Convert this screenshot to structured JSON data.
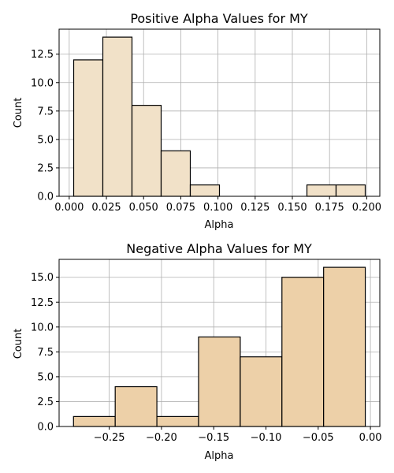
{
  "chart_data": [
    {
      "type": "bar",
      "subtype": "histogram",
      "title": "Positive Alpha Values for MY",
      "xlabel": "Alpha",
      "ylabel": "Count",
      "bin_edges": [
        0.003,
        0.0226,
        0.0422,
        0.0618,
        0.0814,
        0.101,
        0.1206,
        0.1402,
        0.1598,
        0.1794,
        0.199
      ],
      "values": [
        12,
        14,
        8,
        4,
        1,
        0,
        0,
        0,
        1,
        1
      ],
      "xlim": [
        -0.0068,
        0.2088
      ],
      "ylim": [
        0,
        14.7
      ],
      "xticks": [
        0.0,
        0.025,
        0.05,
        0.075,
        0.1,
        0.125,
        0.15,
        0.175,
        0.2
      ],
      "xtick_labels": [
        "0.000",
        "0.025",
        "0.050",
        "0.075",
        "0.100",
        "0.125",
        "0.150",
        "0.175",
        "0.200"
      ],
      "yticks": [
        0.0,
        2.5,
        5.0,
        7.5,
        10.0,
        12.5
      ],
      "ytick_labels": [
        "0.0",
        "2.5",
        "5.0",
        "7.5",
        "10.0",
        "12.5"
      ],
      "grid": true,
      "bar_color": "#f1e1c8",
      "edge_color": "#000000"
    },
    {
      "type": "bar",
      "subtype": "histogram",
      "title": "Negative Alpha Values for MY",
      "xlabel": "Alpha",
      "ylabel": "Count",
      "bin_edges": [
        -0.2842,
        -0.2443,
        -0.2044,
        -0.1645,
        -0.1246,
        -0.0847,
        -0.0448,
        -0.0049
      ],
      "values": [
        1,
        4,
        1,
        9,
        7,
        15,
        16
      ],
      "xlim": [
        -0.298,
        0.009
      ],
      "ylim": [
        0,
        16.8
      ],
      "xticks": [
        -0.25,
        -0.2,
        -0.15,
        -0.1,
        -0.05,
        0.0
      ],
      "xtick_labels": [
        "−0.25",
        "−0.20",
        "−0.15",
        "−0.10",
        "−0.05",
        "0.00"
      ],
      "yticks": [
        0.0,
        2.5,
        5.0,
        7.5,
        10.0,
        12.5,
        15.0
      ],
      "ytick_labels": [
        "0.0",
        "2.5",
        "5.0",
        "7.5",
        "10.0",
        "12.5",
        "15.0"
      ],
      "grid": true,
      "bar_color": "#edd0a8",
      "edge_color": "#000000"
    }
  ]
}
